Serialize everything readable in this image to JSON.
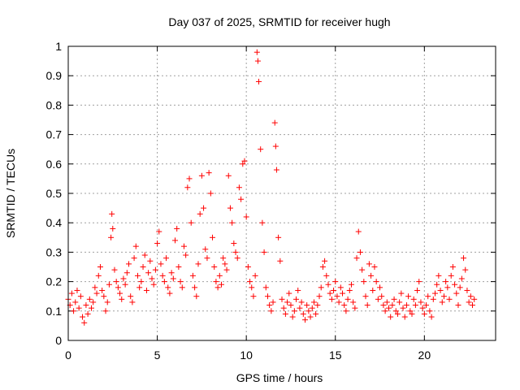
{
  "chart_data": {
    "type": "scatter",
    "title": "Day 037 of 2025, SRMTID for receiver hugh",
    "xlabel": "GPS time / hours",
    "ylabel": "SRMTID / TECUs",
    "xlim": [
      0,
      24
    ],
    "ylim": [
      0,
      1
    ],
    "xticks": [
      0,
      5,
      10,
      15,
      20
    ],
    "xtick_labels": [
      "0",
      "5",
      "10",
      "15",
      "20"
    ],
    "yticks": [
      0,
      0.1,
      0.2,
      0.3,
      0.4,
      0.5,
      0.6,
      0.7,
      0.8,
      0.9,
      1
    ],
    "ytick_labels": [
      "0",
      "0.1",
      "0.2",
      "0.3",
      "0.4",
      "0.5",
      "0.6",
      "0.7",
      "0.8",
      "0.9",
      "1"
    ],
    "grid": true,
    "marker": "+",
    "marker_color": "#ff0000",
    "series": [
      {
        "name": "SRMTID",
        "x": [
          0.0,
          0.1,
          0.2,
          0.3,
          0.4,
          0.5,
          0.6,
          0.7,
          0.8,
          0.9,
          1.0,
          1.1,
          1.2,
          1.3,
          1.4,
          1.5,
          1.6,
          1.7,
          1.8,
          1.9,
          2.0,
          2.1,
          2.2,
          2.3,
          2.4,
          2.45,
          2.5,
          2.6,
          2.7,
          2.8,
          2.9,
          3.0,
          3.1,
          3.2,
          3.3,
          3.4,
          3.5,
          3.6,
          3.7,
          3.8,
          3.9,
          4.0,
          4.1,
          4.2,
          4.3,
          4.4,
          4.5,
          4.6,
          4.7,
          4.8,
          4.9,
          5.0,
          5.1,
          5.2,
          5.3,
          5.4,
          5.5,
          5.6,
          5.7,
          5.8,
          5.9,
          6.0,
          6.1,
          6.2,
          6.3,
          6.4,
          6.5,
          6.6,
          6.7,
          6.8,
          6.9,
          7.0,
          7.1,
          7.2,
          7.3,
          7.4,
          7.5,
          7.6,
          7.7,
          7.8,
          7.9,
          8.0,
          8.1,
          8.2,
          8.3,
          8.4,
          8.5,
          8.6,
          8.7,
          8.8,
          8.9,
          9.0,
          9.1,
          9.2,
          9.3,
          9.4,
          9.5,
          9.6,
          9.7,
          9.8,
          9.9,
          10.0,
          10.1,
          10.2,
          10.3,
          10.4,
          10.5,
          10.6,
          10.65,
          10.7,
          10.8,
          10.9,
          11.0,
          11.1,
          11.2,
          11.3,
          11.4,
          11.5,
          11.6,
          11.65,
          11.7,
          11.8,
          11.9,
          12.0,
          12.1,
          12.2,
          12.3,
          12.4,
          12.5,
          12.6,
          12.7,
          12.8,
          12.9,
          13.0,
          13.1,
          13.2,
          13.3,
          13.4,
          13.5,
          13.6,
          13.7,
          13.8,
          13.9,
          14.0,
          14.1,
          14.2,
          14.3,
          14.4,
          14.5,
          14.6,
          14.7,
          14.8,
          14.9,
          15.0,
          15.1,
          15.2,
          15.3,
          15.4,
          15.5,
          15.6,
          15.7,
          15.8,
          15.9,
          16.0,
          16.1,
          16.2,
          16.3,
          16.4,
          16.5,
          16.6,
          16.7,
          16.8,
          16.9,
          17.0,
          17.1,
          17.2,
          17.3,
          17.4,
          17.5,
          17.6,
          17.7,
          17.8,
          17.9,
          18.0,
          18.1,
          18.2,
          18.3,
          18.4,
          18.5,
          18.6,
          18.7,
          18.8,
          18.9,
          19.0,
          19.1,
          19.2,
          19.3,
          19.4,
          19.5,
          19.6,
          19.7,
          19.8,
          19.9,
          20.0,
          20.1,
          20.2,
          20.3,
          20.4,
          20.5,
          20.6,
          20.7,
          20.8,
          20.9,
          21.0,
          21.1,
          21.2,
          21.3,
          21.4,
          21.5,
          21.6,
          21.7,
          21.8,
          21.9,
          22.0,
          22.1,
          22.2,
          22.3,
          22.4,
          22.5,
          22.6,
          22.7,
          22.8
        ],
        "y": [
          0.14,
          0.12,
          0.16,
          0.1,
          0.13,
          0.17,
          0.11,
          0.15,
          0.08,
          0.06,
          0.12,
          0.09,
          0.14,
          0.11,
          0.13,
          0.18,
          0.16,
          0.22,
          0.25,
          0.17,
          0.15,
          0.1,
          0.13,
          0.19,
          0.35,
          0.43,
          0.38,
          0.24,
          0.2,
          0.18,
          0.16,
          0.14,
          0.21,
          0.19,
          0.23,
          0.26,
          0.15,
          0.13,
          0.28,
          0.32,
          0.22,
          0.18,
          0.2,
          0.25,
          0.29,
          0.17,
          0.23,
          0.27,
          0.21,
          0.19,
          0.24,
          0.33,
          0.37,
          0.26,
          0.22,
          0.2,
          0.28,
          0.18,
          0.16,
          0.23,
          0.21,
          0.34,
          0.38,
          0.25,
          0.2,
          0.18,
          0.32,
          0.29,
          0.52,
          0.55,
          0.4,
          0.22,
          0.18,
          0.15,
          0.26,
          0.43,
          0.56,
          0.45,
          0.31,
          0.28,
          0.57,
          0.5,
          0.35,
          0.25,
          0.2,
          0.18,
          0.22,
          0.19,
          0.28,
          0.26,
          0.24,
          0.56,
          0.45,
          0.4,
          0.33,
          0.3,
          0.28,
          0.52,
          0.48,
          0.6,
          0.61,
          0.42,
          0.25,
          0.2,
          0.18,
          0.15,
          0.22,
          0.98,
          0.95,
          0.88,
          0.65,
          0.4,
          0.3,
          0.18,
          0.15,
          0.12,
          0.1,
          0.13,
          0.74,
          0.66,
          0.58,
          0.35,
          0.27,
          0.14,
          0.11,
          0.09,
          0.13,
          0.16,
          0.12,
          0.08,
          0.1,
          0.14,
          0.17,
          0.11,
          0.13,
          0.09,
          0.07,
          0.12,
          0.1,
          0.08,
          0.11,
          0.13,
          0.09,
          0.12,
          0.15,
          0.18,
          0.25,
          0.27,
          0.22,
          0.19,
          0.16,
          0.14,
          0.17,
          0.2,
          0.15,
          0.13,
          0.18,
          0.16,
          0.12,
          0.1,
          0.14,
          0.17,
          0.19,
          0.13,
          0.11,
          0.28,
          0.37,
          0.3,
          0.24,
          0.2,
          0.15,
          0.12,
          0.26,
          0.22,
          0.17,
          0.25,
          0.2,
          0.14,
          0.18,
          0.15,
          0.12,
          0.1,
          0.13,
          0.11,
          0.08,
          0.12,
          0.14,
          0.1,
          0.09,
          0.13,
          0.16,
          0.11,
          0.08,
          0.12,
          0.15,
          0.1,
          0.09,
          0.14,
          0.12,
          0.17,
          0.2,
          0.13,
          0.11,
          0.09,
          0.12,
          0.15,
          0.1,
          0.08,
          0.14,
          0.16,
          0.19,
          0.22,
          0.17,
          0.13,
          0.15,
          0.2,
          0.18,
          0.14,
          0.22,
          0.25,
          0.19,
          0.16,
          0.12,
          0.18,
          0.21,
          0.28,
          0.24,
          0.17,
          0.13,
          0.15,
          0.12,
          0.14
        ]
      }
    ]
  }
}
